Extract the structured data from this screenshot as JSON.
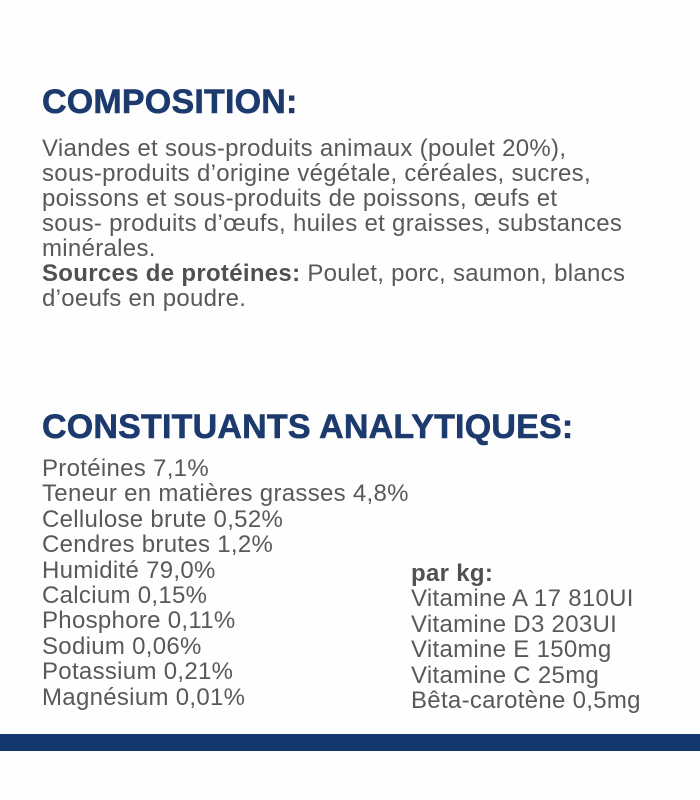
{
  "colors": {
    "heading": "#1d3a6e",
    "body_text": "#58595b",
    "bold_text": "#4f5052",
    "bottom_bar": "#14386e",
    "background": "#fefefe"
  },
  "composition": {
    "heading": "COMPOSITION:",
    "lines": [
      "Viandes et sous-produits animaux (poulet 20%),",
      "sous-produits d’origine végétale, céréales, sucres,",
      "poissons et sous-produits de poissons, œufs et",
      "sous- produits d’œufs, huiles et graisses, substances",
      "minérales."
    ],
    "sources_label": "Sources de protéines:",
    "sources_rest": " Poulet, porc, saumon, blancs",
    "sources_line2": "d’oeufs en poudre."
  },
  "analytical": {
    "heading": "CONSTITUANTS ANALYTIQUES:",
    "items": [
      "Protéines 7,1%",
      "Teneur en matières grasses 4,8%",
      "Cellulose brute 0,52%",
      "Cendres brutes 1,2%",
      "Humidité 79,0%",
      "Calcium 0,15%",
      "Phosphore 0,11%",
      "Sodium 0,06%",
      "Potassium 0,21%",
      "Magnésium 0,01%"
    ],
    "per_kg": {
      "label": "par kg:",
      "items": [
        "Vitamine A 17 810UI",
        "Vitamine D3 203UI",
        "Vitamine E 150mg",
        "Vitamine C 25mg",
        "Bêta-carotène 0,5mg"
      ]
    }
  }
}
